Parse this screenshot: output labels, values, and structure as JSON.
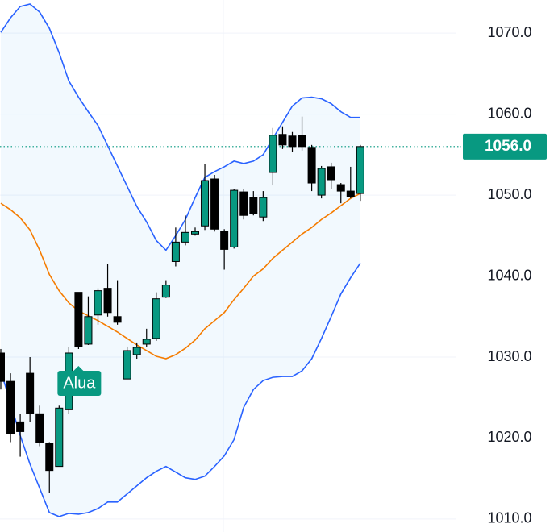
{
  "chart_data": {
    "type": "candlestick",
    "ylim": [
      1008.4,
      1074.1
    ],
    "yticks": [
      {
        "value": 1010,
        "label": "1010.0"
      },
      {
        "value": 1020,
        "label": "1020.0"
      },
      {
        "value": 1030,
        "label": "1030.0"
      },
      {
        "value": 1040,
        "label": "1040.0"
      },
      {
        "value": 1050,
        "label": "1050.0"
      },
      {
        "value": 1060,
        "label": "1060.0"
      },
      {
        "value": 1070,
        "label": "1070.0"
      }
    ],
    "grid": true,
    "up_color": "#089981",
    "down_color": "#000000",
    "candles": [
      {
        "open": 1030.5,
        "high": 1031,
        "low": 1026,
        "close": 1027
      },
      {
        "open": 1027,
        "high": 1028,
        "low": 1019.5,
        "close": 1020.5
      },
      {
        "open": 1022,
        "high": 1023,
        "low": 1017.7,
        "close": 1020.8
      },
      {
        "open": 1028,
        "high": 1030,
        "low": 1022,
        "close": 1023
      },
      {
        "open": 1023,
        "high": 1024,
        "low": 1019,
        "close": 1019.5
      },
      {
        "open": 1019.3,
        "high": 1019.5,
        "low": 1013.2,
        "close": 1016
      },
      {
        "open": 1016.5,
        "high": 1024,
        "low": 1016.5,
        "close": 1023.7
      },
      {
        "open": 1023.5,
        "high": 1031.2,
        "low": 1023,
        "close": 1030.5
      },
      {
        "open": 1038,
        "high": 1038,
        "low": 1031,
        "close": 1031.3
      },
      {
        "open": 1031.6,
        "high": 1037.5,
        "low": 1031.5,
        "close": 1035
      },
      {
        "open": 1035.2,
        "high": 1038.5,
        "low": 1034,
        "close": 1038.2
      },
      {
        "open": 1038.5,
        "high": 1041.5,
        "low": 1035,
        "close": 1035.5
      },
      {
        "open": 1035,
        "high": 1039.5,
        "low": 1034,
        "close": 1034.3
      },
      {
        "open": 1027.3,
        "high": 1031.3,
        "low": 1027.3,
        "close": 1030.8
      },
      {
        "open": 1030.3,
        "high": 1031.8,
        "low": 1029.8,
        "close": 1031.2
      },
      {
        "open": 1031.6,
        "high": 1033.5,
        "low": 1031.3,
        "close": 1032.2
      },
      {
        "open": 1032.3,
        "high": 1038,
        "low": 1032,
        "close": 1037.2
      },
      {
        "open": 1037.4,
        "high": 1039.5,
        "low": 1037.3,
        "close": 1038.9
      },
      {
        "open": 1041.8,
        "high": 1046,
        "low": 1041.2,
        "close": 1044.2
      },
      {
        "open": 1044.2,
        "high": 1047.5,
        "low": 1043.8,
        "close": 1045.4
      },
      {
        "open": 1045.2,
        "high": 1046,
        "low": 1045,
        "close": 1045.5
      },
      {
        "open": 1046.2,
        "high": 1053.8,
        "low": 1045.7,
        "close": 1051.8
      },
      {
        "open": 1052,
        "high": 1052.5,
        "low": 1045.5,
        "close": 1045.8
      },
      {
        "open": 1045.5,
        "high": 1045.8,
        "low": 1040.8,
        "close": 1043.3
      },
      {
        "open": 1043.6,
        "high": 1050.8,
        "low": 1043.4,
        "close": 1050.6
      },
      {
        "open": 1050.4,
        "high": 1050.8,
        "low": 1047,
        "close": 1047.5
      },
      {
        "open": 1049.7,
        "high": 1050.5,
        "low": 1047.5,
        "close": 1047.7
      },
      {
        "open": 1047.3,
        "high": 1050.5,
        "low": 1046.8,
        "close": 1049.7
      },
      {
        "open": 1052.8,
        "high": 1058.3,
        "low": 1051.2,
        "close": 1057.4
      },
      {
        "open": 1057.5,
        "high": 1058.5,
        "low": 1055.7,
        "close": 1056.2
      },
      {
        "open": 1057.3,
        "high": 1057.8,
        "low": 1055.3,
        "close": 1056
      },
      {
        "open": 1057.4,
        "high": 1059.7,
        "low": 1055.5,
        "close": 1056
      },
      {
        "open": 1055.9,
        "high": 1056.2,
        "low": 1050.5,
        "close": 1051.5
      },
      {
        "open": 1050,
        "high": 1053.6,
        "low": 1049.6,
        "close": 1053.3
      },
      {
        "open": 1053.5,
        "high": 1054,
        "low": 1050.8,
        "close": 1051.9
      },
      {
        "open": 1051.3,
        "high": 1051.5,
        "low": 1049,
        "close": 1050.5
      },
      {
        "open": 1050.5,
        "high": 1053.5,
        "low": 1049.6,
        "close": 1049.8
      },
      {
        "open": 1050.2,
        "high": 1056.2,
        "low": 1049.3,
        "close": 1056
      }
    ],
    "bands": {
      "color": "#2962ff",
      "fill": "rgba(33,150,243,0.06)",
      "middle_color": "#f57c00",
      "upper": [
        1070.1,
        1071.9,
        1073.3,
        1073.6,
        1072.6,
        1070.6,
        1067.6,
        1064.1,
        1062.1,
        1060.3,
        1058.6,
        1056.1,
        1053.6,
        1051.1,
        1048.6,
        1046.7,
        1044.4,
        1043.2,
        1045.0,
        1047.0,
        1049.7,
        1052.2,
        1052.9,
        1053.5,
        1054.2,
        1053.9,
        1054.2,
        1055.0,
        1057.0,
        1059.0,
        1061.0,
        1062.0,
        1062.1,
        1061.9,
        1061.3,
        1060.3,
        1059.6,
        1059.6
      ],
      "middle": [
        1049.0,
        1048.2,
        1047.2,
        1045.7,
        1043.2,
        1040.2,
        1038.2,
        1036.7,
        1035.7,
        1035.1,
        1034.5,
        1033.8,
        1033.1,
        1032.3,
        1031.5,
        1030.8,
        1030.1,
        1029.8,
        1030.3,
        1031.1,
        1032.1,
        1033.5,
        1034.5,
        1035.5,
        1037.1,
        1038.5,
        1040.0,
        1040.9,
        1042.2,
        1043.2,
        1044.2,
        1045.2,
        1046.0,
        1047.0,
        1047.8,
        1048.7,
        1049.6,
        1050.2
      ],
      "lower": [
        1028.3,
        1024.3,
        1020.3,
        1016.8,
        1013.8,
        1010.8,
        1010.3,
        1010.7,
        1010.6,
        1010.8,
        1011.3,
        1012.1,
        1012.1,
        1013.1,
        1014.1,
        1015.1,
        1015.9,
        1016.5,
        1015.8,
        1015.1,
        1014.9,
        1015.3,
        1016.5,
        1017.8,
        1019.8,
        1023.8,
        1026.0,
        1027.1,
        1027.5,
        1027.6,
        1027.6,
        1028.3,
        1029.8,
        1032.3,
        1035.0,
        1037.8,
        1039.8,
        1041.6
      ]
    },
    "last_price": {
      "value": 1056,
      "label": "1056.0",
      "color": "#089981"
    },
    "annotation": {
      "text": "Alua",
      "index": 7,
      "color": "#089981"
    }
  }
}
